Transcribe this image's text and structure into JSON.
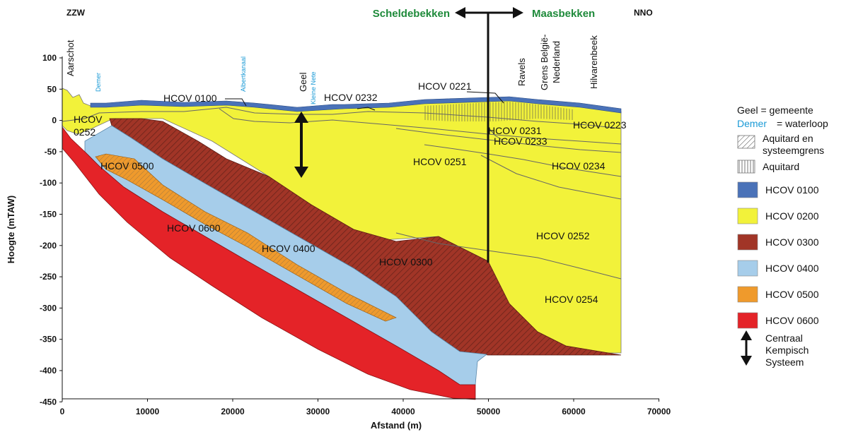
{
  "directions": {
    "left": "ZZW",
    "right": "NNO"
  },
  "basins": {
    "left": "Scheldebekken",
    "right": "Maasbekken"
  },
  "axes": {
    "x_title": "Afstand (m)",
    "y_title": "Hoogte (mTAW)",
    "x_ticks": [
      "0",
      "10000",
      "20000",
      "30000",
      "40000",
      "50000",
      "60000",
      "70000"
    ],
    "y_ticks": [
      "100",
      "50",
      "0",
      "-50",
      "-100",
      "-150",
      "-200",
      "-250",
      "-300",
      "-350",
      "-400",
      "-450"
    ]
  },
  "places": {
    "aarschot": "Aarschot",
    "geel": "Geel",
    "ravels": "Ravels",
    "grens_line1": "Grens België-",
    "grens_line2": "Nederland",
    "hilvarenbeek": "Hilvarenbeek"
  },
  "rivers": {
    "demer": "Demer",
    "albertkanaal": "Albertkanaal",
    "kleine_nete": "Kleine Nete"
  },
  "units": {
    "u0100": "HCOV 0100",
    "u0232": "HCOV 0232",
    "u0221": "HCOV 0221",
    "u0231": "HCOV 0231",
    "u0233": "HCOV 0233",
    "u0223": "HCOV 0223",
    "u0251": "HCOV 0251",
    "u0234": "HCOV 0234",
    "u0252_left_a": "HCOV",
    "u0252_left_b": "0252",
    "u0252": "HCOV 0252",
    "u0254": "HCOV 0254",
    "u0500": "HCOV 0500",
    "u0600": "HCOV 0600",
    "u0400": "HCOV 0400",
    "u0300": "HCOV 0300"
  },
  "legend": {
    "geel_note": "Geel = gemeente",
    "demer_word": "Demer",
    "demer_note": "= waterloop",
    "aquitard_sys_line1": "Aquitard en",
    "aquitard_sys_line2": "systeemgrens",
    "aquitard": "Aquitard",
    "items": [
      {
        "label": "HCOV 0100",
        "color": "#4a72b8"
      },
      {
        "label": "HCOV 0200",
        "color": "#f2f23a"
      },
      {
        "label": "HCOV 0300",
        "color": "#a13527"
      },
      {
        "label": "HCOV 0400",
        "color": "#a6cdea"
      },
      {
        "label": "HCOV 0500",
        "color": "#ef9a2c"
      },
      {
        "label": "HCOV 0600",
        "color": "#e42328"
      }
    ],
    "cks_line1": "Centraal",
    "cks_line2": "Kempisch",
    "cks_line3": "Systeem"
  }
}
